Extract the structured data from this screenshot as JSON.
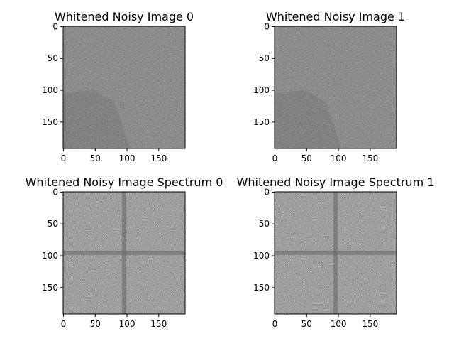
{
  "chart_data": [
    {
      "type": "heatmap",
      "title": "Whitened Noisy Image 0",
      "colormap": "gray",
      "image_size": [
        192,
        192
      ],
      "xticks": [
        0,
        50,
        100,
        150
      ],
      "yticks": [
        0,
        50,
        100,
        150
      ],
      "content": "whitened image"
    },
    {
      "type": "heatmap",
      "title": "Whitened Noisy Image 1",
      "colormap": "gray",
      "image_size": [
        192,
        192
      ],
      "xticks": [
        0,
        50,
        100,
        150
      ],
      "yticks": [
        0,
        50,
        100,
        150
      ],
      "content": "whitened image"
    },
    {
      "type": "heatmap",
      "title": "Whitened Noisy Image Spectrum 0",
      "colormap": "gray",
      "image_size": [
        192,
        192
      ],
      "xticks": [
        0,
        50,
        100,
        150
      ],
      "yticks": [
        0,
        50,
        100,
        150
      ],
      "content": "spectrum"
    },
    {
      "type": "heatmap",
      "title": "Whitened Noisy Image Spectrum 1",
      "colormap": "gray",
      "image_size": [
        192,
        192
      ],
      "xticks": [
        0,
        50,
        100,
        150
      ],
      "yticks": [
        0,
        50,
        100,
        150
      ],
      "content": "spectrum"
    }
  ]
}
